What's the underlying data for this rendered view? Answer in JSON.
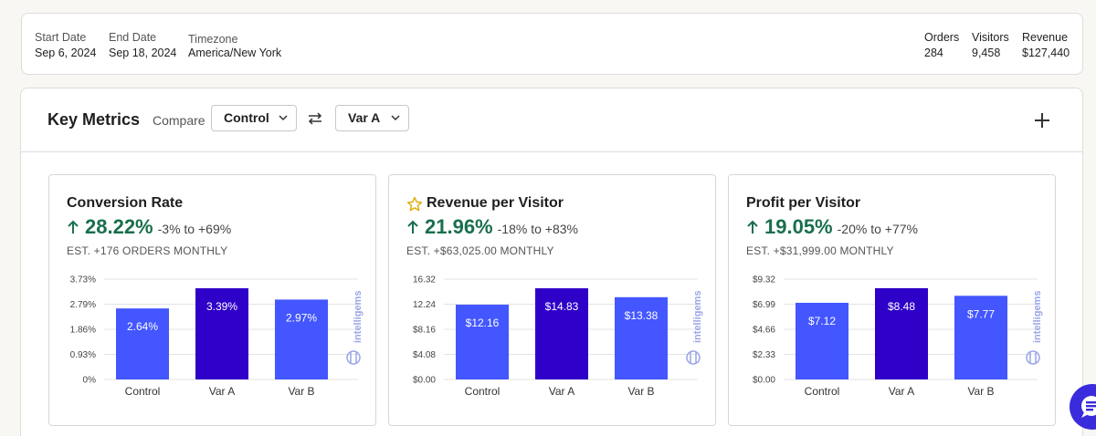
{
  "summary": {
    "start_date": {
      "label": "Start Date",
      "value": "Sep 6, 2024"
    },
    "end_date": {
      "label": "End Date",
      "value": "Sep 18, 2024"
    },
    "timezone": {
      "label": "Timezone",
      "value": "America/New York"
    },
    "orders": {
      "label": "Orders",
      "value": "284"
    },
    "visitors": {
      "label": "Visitors",
      "value": "9,458"
    },
    "revenue": {
      "label": "Revenue",
      "value": "$127,440"
    }
  },
  "key_metrics": {
    "title": "Key Metrics",
    "compare_label": "Compare",
    "compare_a": "Control",
    "compare_b": "Var A",
    "icons": [
      "swap-icon",
      "plus-icon",
      "chevron-down-icon",
      "star-icon",
      "arrow-up-icon",
      "chat-icon"
    ]
  },
  "colors": {
    "positive": "#1a6f4c",
    "bar_control": "#4356ff",
    "bar_var_a": "#2f00c8",
    "bar_var_b": "#4356ff",
    "watermark": "#9aa6e8"
  },
  "watermark": "intelligems",
  "cards": [
    {
      "title": "Conversion Rate",
      "starred": false,
      "lift": "28.22%",
      "range": "-3% to +69%",
      "estimate": "EST. +176 ORDERS MONTHLY"
    },
    {
      "title": "Revenue per Visitor",
      "starred": true,
      "lift": "21.96%",
      "range": "-18% to +83%",
      "estimate": "EST. +$63,025.00 MONTHLY"
    },
    {
      "title": "Profit per Visitor",
      "starred": false,
      "lift": "19.05%",
      "range": "-20% to +77%",
      "estimate": "EST. +$31,999.00 MONTHLY"
    }
  ],
  "chart_data": [
    {
      "type": "bar",
      "categories": [
        "Control",
        "Var A",
        "Var B"
      ],
      "values": [
        2.64,
        3.39,
        2.97
      ],
      "value_labels": [
        "2.64%",
        "3.39%",
        "2.97%"
      ],
      "yticks": [
        "0%",
        "0.93%",
        "1.86%",
        "2.79%",
        "3.73%"
      ],
      "ylim": [
        0,
        3.73
      ],
      "grid": true,
      "title": "",
      "xlabel": "",
      "ylabel": ""
    },
    {
      "type": "bar",
      "categories": [
        "Control",
        "Var A",
        "Var B"
      ],
      "values": [
        12.16,
        14.83,
        13.38
      ],
      "value_labels": [
        "$12.16",
        "$14.83",
        "$13.38"
      ],
      "yticks": [
        "$0.00",
        "$4.08",
        "$8.16",
        "12.24",
        "16.32"
      ],
      "ylim": [
        0,
        16.32
      ],
      "grid": true,
      "title": "",
      "xlabel": "",
      "ylabel": ""
    },
    {
      "type": "bar",
      "categories": [
        "Control",
        "Var A",
        "Var B"
      ],
      "values": [
        7.12,
        8.48,
        7.77
      ],
      "value_labels": [
        "$7.12",
        "$8.48",
        "$7.77"
      ],
      "yticks": [
        "$0.00",
        "$2.33",
        "$4.66",
        "$6.99",
        "$9.32"
      ],
      "ylim": [
        0,
        9.32
      ],
      "grid": true,
      "title": "",
      "xlabel": "",
      "ylabel": ""
    }
  ]
}
